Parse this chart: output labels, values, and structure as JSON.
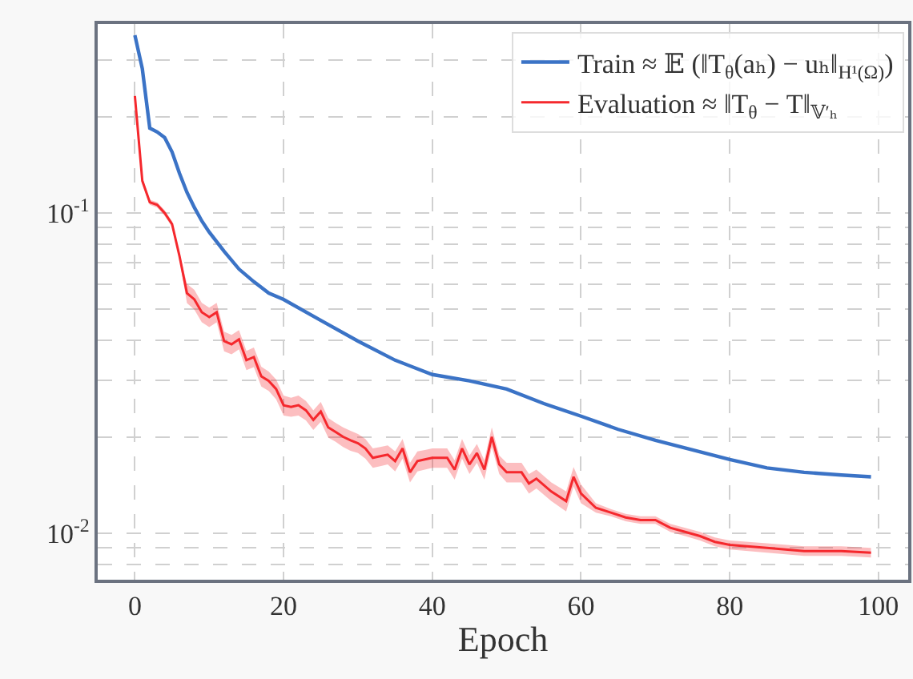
{
  "chart_data": {
    "type": "line",
    "xlabel": "Epoch",
    "log": "y",
    "grid": true,
    "legend": "top right",
    "line_style": "solid",
    "marker": "none",
    "xlim": [
      -5,
      104
    ],
    "xticks": [
      0,
      20,
      40,
      60,
      80,
      100
    ],
    "ylim": [
      0.00716,
      0.389
    ],
    "yticks": [
      {
        "value": 0.008,
        "label": null
      },
      {
        "value": 0.009,
        "label": null
      },
      {
        "value": 0.01,
        "label": "10$^{-2}$"
      },
      {
        "value": 0.02,
        "label": null
      },
      {
        "value": 0.03,
        "label": null
      },
      {
        "value": 0.04,
        "label": null
      },
      {
        "value": 0.05,
        "label": null
      },
      {
        "value": 0.06,
        "label": null
      },
      {
        "value": 0.07,
        "label": null
      },
      {
        "value": 0.08,
        "label": null
      },
      {
        "value": 0.09,
        "label": null
      },
      {
        "value": 0.1,
        "label": "10$^{-1}$"
      },
      {
        "value": 0.2,
        "label": null
      },
      {
        "value": 0.3,
        "label": null
      }
    ],
    "series": [
      {
        "name": "Train ≈ 𝔼 (‖T$_{θ}$(aₕ) − uₕ‖$_{H¹(Ω)}$)",
        "color": "#3b73c6",
        "x": [
          0,
          1,
          2,
          3,
          4,
          5,
          6,
          7,
          8,
          9,
          10,
          12,
          14,
          16,
          18,
          20,
          25,
          30,
          35,
          40,
          45,
          50,
          55,
          60,
          65,
          70,
          75,
          80,
          85,
          90,
          95,
          99
        ],
        "values": [
          0.359,
          0.282,
          0.184,
          0.179,
          0.172,
          0.155,
          0.133,
          0.116,
          0.104,
          0.0944,
          0.0871,
          0.0759,
          0.0668,
          0.061,
          0.0562,
          0.0537,
          0.0462,
          0.0398,
          0.0347,
          0.0313,
          0.0299,
          0.0282,
          0.0254,
          0.0232,
          0.0211,
          0.0195,
          0.0182,
          0.017,
          0.016,
          0.0155,
          0.0152,
          0.015
        ]
      },
      {
        "name": "Evaluation ≈ ‖T$_{θ}$ − T‖$_{𝕍′ₕ}$",
        "color": "#f5282d",
        "x": [
          0,
          1,
          2,
          3,
          4,
          5,
          6,
          7,
          8,
          9,
          10,
          11,
          12,
          13,
          14,
          15,
          16,
          17,
          18,
          19,
          20,
          21,
          22,
          23,
          24,
          25,
          26,
          27,
          28,
          29,
          30,
          31,
          32,
          33,
          34,
          35,
          36,
          37,
          38,
          39,
          40,
          42,
          43,
          44,
          45,
          46,
          47,
          48,
          49,
          50,
          52,
          53,
          54,
          56,
          58,
          59,
          60,
          62,
          64,
          66,
          68,
          70,
          72,
          74,
          76,
          78,
          80,
          85,
          90,
          95,
          99
        ],
        "values": [
          0.232,
          0.126,
          0.108,
          0.106,
          0.1,
          0.0923,
          0.0733,
          0.0562,
          0.0537,
          0.049,
          0.0473,
          0.049,
          0.0398,
          0.0389,
          0.0403,
          0.0347,
          0.0355,
          0.0309,
          0.0299,
          0.0282,
          0.0251,
          0.0248,
          0.0251,
          0.0242,
          0.0226,
          0.024,
          0.0214,
          0.0207,
          0.02,
          0.0195,
          0.0191,
          0.0184,
          0.0172,
          0.0174,
          0.0176,
          0.0168,
          0.0184,
          0.0155,
          0.0168,
          0.017,
          0.0172,
          0.0172,
          0.0158,
          0.0184,
          0.0164,
          0.0178,
          0.0158,
          0.02,
          0.0164,
          0.0155,
          0.0155,
          0.0143,
          0.0148,
          0.0135,
          0.0126,
          0.015,
          0.0133,
          0.012,
          0.0116,
          0.0112,
          0.011,
          0.011,
          0.0104,
          0.0101,
          0.0098,
          0.0094,
          0.0092,
          0.009,
          0.0088,
          0.0088,
          0.0087
        ],
        "lower": [
          0.227,
          0.123,
          0.106,
          0.104,
          0.098,
          0.0905,
          0.0718,
          0.0523,
          0.0499,
          0.0456,
          0.044,
          0.0456,
          0.037,
          0.0362,
          0.0375,
          0.0323,
          0.033,
          0.0287,
          0.0278,
          0.0262,
          0.0233,
          0.0231,
          0.0233,
          0.0225,
          0.021,
          0.0223,
          0.0199,
          0.0193,
          0.0186,
          0.0181,
          0.0178,
          0.0171,
          0.016,
          0.0162,
          0.0164,
          0.0156,
          0.0171,
          0.0144,
          0.0156,
          0.0158,
          0.016,
          0.016,
          0.0147,
          0.0171,
          0.0153,
          0.0166,
          0.0147,
          0.0186,
          0.0153,
          0.0144,
          0.0144,
          0.0133,
          0.0138,
          0.0126,
          0.0117,
          0.014,
          0.0124,
          0.0116,
          0.0113,
          0.0109,
          0.0107,
          0.0107,
          0.0101,
          0.0098,
          0.0095,
          0.0091,
          0.0089,
          0.0087,
          0.0085,
          0.0085,
          0.0084
        ],
        "upper": [
          0.237,
          0.129,
          0.11,
          0.108,
          0.102,
          0.0941,
          0.0748,
          0.0601,
          0.0575,
          0.0524,
          0.0506,
          0.0524,
          0.0426,
          0.0416,
          0.0431,
          0.0371,
          0.038,
          0.0331,
          0.032,
          0.0302,
          0.0269,
          0.0265,
          0.0269,
          0.0259,
          0.0242,
          0.0257,
          0.0229,
          0.0221,
          0.0214,
          0.0209,
          0.0204,
          0.0197,
          0.0184,
          0.0186,
          0.0188,
          0.018,
          0.0197,
          0.0166,
          0.018,
          0.0182,
          0.0184,
          0.0184,
          0.0169,
          0.0197,
          0.0175,
          0.019,
          0.0169,
          0.0214,
          0.0175,
          0.0166,
          0.0166,
          0.0153,
          0.0158,
          0.0144,
          0.0135,
          0.0161,
          0.0142,
          0.0124,
          0.0119,
          0.0115,
          0.0113,
          0.0113,
          0.0107,
          0.0104,
          0.0101,
          0.0097,
          0.0095,
          0.0093,
          0.0091,
          0.0091,
          0.009
        ]
      }
    ]
  }
}
